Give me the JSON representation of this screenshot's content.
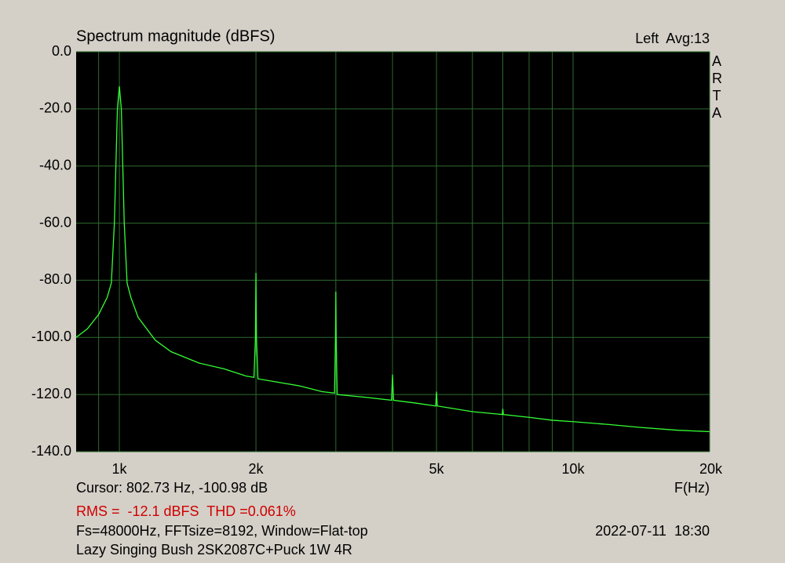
{
  "chart_data": {
    "type": "line",
    "title": "Spectrum magnitude (dBFS)",
    "channel_label": "Left  Avg:13",
    "brand": "ARTA",
    "cursor_text": "Cursor: 802.73 Hz, -100.98 dB",
    "x_label": "F(Hz)",
    "measurement_text": "RMS =  -12.1 dBFS  THD =0.061%",
    "settings_text": "Fs=48000Hz, FFTsize=8192, Window=Flat-top",
    "timestamp": "2022-07-11  18:30",
    "device_text": "Lazy Singing Bush 2SK2087C+Puck 1W 4R",
    "xscale": "log",
    "xlim": [
      803,
      20000
    ],
    "ylim": [
      -140,
      0
    ],
    "xticks": [
      {
        "value": 1000,
        "label": "1k"
      },
      {
        "value": 2000,
        "label": "2k"
      },
      {
        "value": 5000,
        "label": "5k"
      },
      {
        "value": 10000,
        "label": "10k"
      },
      {
        "value": 20000,
        "label": "20k"
      }
    ],
    "xminor_ticks": [
      900,
      3000,
      4000,
      6000,
      7000,
      8000,
      9000
    ],
    "yticks": [
      {
        "value": 0,
        "label": "0.0"
      },
      {
        "value": -20,
        "label": "-20.0"
      },
      {
        "value": -40,
        "label": "-40.0"
      },
      {
        "value": -60,
        "label": "-60.0"
      },
      {
        "value": -80,
        "label": "-80.0"
      },
      {
        "value": -100,
        "label": "-100.0"
      },
      {
        "value": -120,
        "label": "-120.0"
      },
      {
        "value": -140,
        "label": "-140.0"
      }
    ],
    "grid": true,
    "x": [
      803,
      850,
      900,
      940,
      960,
      975,
      990,
      1000,
      1010,
      1025,
      1040,
      1060,
      1100,
      1200,
      1300,
      1500,
      1700,
      1900,
      1980,
      1995,
      2000,
      2005,
      2020,
      2200,
      2500,
      2800,
      2980,
      2995,
      3000,
      3005,
      3020,
      3500,
      3980,
      4000,
      4020,
      4500,
      4980,
      5000,
      5020,
      6000,
      6980,
      7000,
      7020,
      8000,
      9000,
      10000,
      12000,
      14000,
      17000,
      20000
    ],
    "series": [
      {
        "name": "Left",
        "color": "#33ff33",
        "values": [
          -100,
          -97,
          -92,
          -86,
          -81,
          -60,
          -20,
          -12.1,
          -20,
          -60,
          -81,
          -86,
          -93,
          -101,
          -105,
          -109,
          -111,
          -113.5,
          -114,
          -100,
          -77.4,
          -100,
          -114.5,
          -115.5,
          -117,
          -119,
          -119.5,
          -100,
          -84,
          -100,
          -120,
          -121,
          -122,
          -113,
          -122,
          -123,
          -124,
          -119,
          -124,
          -126,
          -127,
          -125,
          -127,
          -128,
          -129,
          -129.5,
          -130.5,
          -131.5,
          -132.5,
          -133
        ]
      }
    ]
  }
}
